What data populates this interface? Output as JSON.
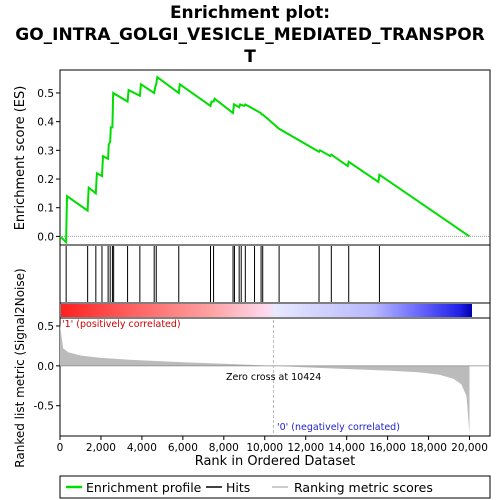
{
  "chart_data": {
    "type": "line",
    "title_lines": [
      "Enrichment plot:",
      "GO_INTRA_GOLGI_VESICLE_MEDIATED_TRANSPOR",
      "T"
    ],
    "xlabel": "Rank in Ordered Dataset",
    "ylabel_top": "Enrichment score (ES)",
    "ylabel_bottom": "Ranked list metric (Signal2Noise)",
    "xlim": [
      0,
      21000
    ],
    "x_ticks": [
      0,
      2000,
      4000,
      6000,
      8000,
      10000,
      12000,
      14000,
      16000,
      18000,
      20000
    ],
    "x_tick_labels": [
      "0",
      "2,000",
      "4,000",
      "6,000",
      "8,000",
      "10,000",
      "12,000",
      "14,000",
      "16,000",
      "18,000",
      "20,000"
    ],
    "top": {
      "ylim": [
        -0.03,
        0.58
      ],
      "y_ticks": [
        0.0,
        0.1,
        0.2,
        0.3,
        0.4,
        0.5
      ],
      "y_tick_labels": [
        "0.0",
        "0.1",
        "0.2",
        "0.3",
        "0.4",
        "0.5"
      ]
    },
    "bottom": {
      "ylim": [
        -0.88,
        0.6
      ],
      "y_ticks": [
        0.5,
        0.0,
        -0.5
      ],
      "y_tick_labels": [
        "0.5",
        "0.0",
        "-0.5"
      ]
    },
    "series": [
      {
        "name": "Enrichment profile",
        "color": "#00dd00",
        "x": [
          0,
          300,
          340,
          1350,
          1400,
          1750,
          1800,
          2050,
          2100,
          2350,
          2380,
          2450,
          2480,
          2560,
          2600,
          3300,
          3350,
          3900,
          3950,
          4600,
          4650,
          4700,
          4750,
          5800,
          5850,
          7350,
          7400,
          7500,
          7550,
          8450,
          8500,
          8750,
          8800,
          9000,
          9050,
          9800,
          9850,
          9900,
          10700,
          12650,
          12700,
          13200,
          13250,
          14050,
          14100,
          15550,
          15600,
          20000
        ],
        "y": [
          0.0,
          -0.02,
          0.14,
          0.09,
          0.17,
          0.15,
          0.22,
          0.21,
          0.28,
          0.27,
          0.32,
          0.33,
          0.38,
          0.38,
          0.5,
          0.47,
          0.51,
          0.49,
          0.53,
          0.5,
          0.52,
          0.53,
          0.555,
          0.5,
          0.53,
          0.455,
          0.47,
          0.47,
          0.48,
          0.43,
          0.46,
          0.45,
          0.46,
          0.455,
          0.46,
          0.43,
          0.425,
          0.425,
          0.375,
          0.295,
          0.3,
          0.28,
          0.285,
          0.245,
          0.26,
          0.19,
          0.215,
          0.0
        ]
      }
    ],
    "hits": [
      300,
      1350,
      1750,
      2050,
      2350,
      2450,
      2560,
      2620,
      3300,
      3900,
      4600,
      4700,
      5800,
      7350,
      7500,
      8450,
      8520,
      8750,
      8850,
      9050,
      9500,
      9820,
      9900,
      10700,
      12650,
      13250,
      14100,
      15600
    ],
    "metric_series": {
      "name": "Ranking metric scores",
      "color": "#bbbbbb",
      "x": [
        0,
        150,
        400,
        1000,
        2000,
        3500,
        6000,
        8000,
        10424,
        12000,
        14000,
        16000,
        17500,
        18500,
        19200,
        19600,
        19850,
        20000
      ],
      "y": [
        0.52,
        0.22,
        0.17,
        0.13,
        0.1,
        0.075,
        0.045,
        0.025,
        0.0,
        -0.02,
        -0.04,
        -0.06,
        -0.08,
        -0.11,
        -0.16,
        -0.23,
        -0.38,
        -0.85
      ]
    },
    "zero_cross": 10424,
    "annotations": {
      "zero_cross_text": "Zero cross at 10424",
      "positive_text": "'1' (positively correlated)",
      "negative_text": "'0' (negatively correlated)"
    },
    "legend": [
      {
        "label": "Enrichment profile",
        "color": "#00dd00"
      },
      {
        "label": "Hits",
        "color": "#000000"
      },
      {
        "label": "Ranking metric scores",
        "color": "#bbbbbb"
      }
    ],
    "colors": {
      "positive_band": "#ff2222",
      "negative_band": "#1111dd",
      "negative_label": "#2222cc",
      "positive_label": "#cc0000"
    }
  }
}
